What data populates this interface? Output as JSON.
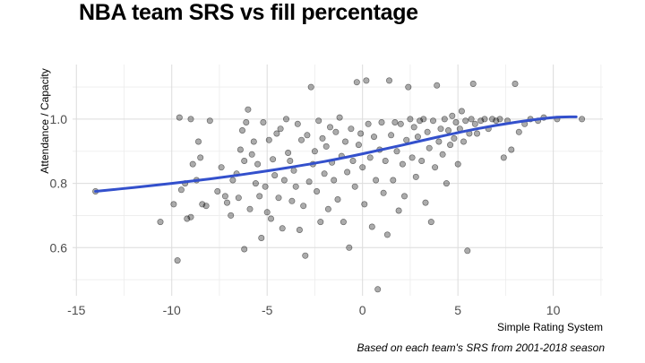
{
  "chart_data": {
    "type": "scatter",
    "title": "NBA team SRS vs fill percentage",
    "xlabel": "Simple Rating System",
    "ylabel": "Attendance / Capacity",
    "caption": "Based on each team's SRS from 2001-2018 season",
    "xlim": [
      -15.2,
      12.6
    ],
    "ylim": [
      0.45,
      1.17
    ],
    "x_ticks": [
      -15,
      -10,
      -5,
      0,
      5,
      10
    ],
    "x_tick_labels": [
      "-15",
      "-10",
      "-5",
      "0",
      "5",
      "10"
    ],
    "y_ticks": [
      0.6,
      0.8,
      1.0
    ],
    "y_tick_labels": [
      "0.6",
      "0.8",
      "1.0"
    ],
    "grid": true,
    "point_color": "#000000",
    "trend_color": "#3350cc",
    "trend": {
      "method": "smooth",
      "x": [
        -14.0,
        -12.0,
        -10.0,
        -8.0,
        -6.0,
        -4.0,
        -2.0,
        0.0,
        2.0,
        4.0,
        6.0,
        8.0,
        10.0,
        11.2
      ],
      "y": [
        0.775,
        0.787,
        0.8,
        0.814,
        0.83,
        0.848,
        0.868,
        0.892,
        0.918,
        0.945,
        0.97,
        0.99,
        1.005,
        1.007
      ]
    },
    "points": [
      [
        -14.0,
        0.775
      ],
      [
        -10.6,
        0.68
      ],
      [
        -9.9,
        0.735
      ],
      [
        -9.7,
        0.56
      ],
      [
        -9.6,
        1.005
      ],
      [
        -9.5,
        0.78
      ],
      [
        -9.3,
        0.8
      ],
      [
        -9.2,
        0.69
      ],
      [
        -9.0,
        0.695
      ],
      [
        -9.0,
        1.0
      ],
      [
        -8.9,
        0.86
      ],
      [
        -8.7,
        0.81
      ],
      [
        -8.6,
        0.93
      ],
      [
        -8.5,
        0.88
      ],
      [
        -8.4,
        0.735
      ],
      [
        -8.2,
        0.73
      ],
      [
        -8.0,
        0.995
      ],
      [
        -7.6,
        0.775
      ],
      [
        -7.4,
        0.85
      ],
      [
        -7.2,
        0.76
      ],
      [
        -7.1,
        0.74
      ],
      [
        -6.9,
        0.7
      ],
      [
        -6.8,
        0.81
      ],
      [
        -6.6,
        0.83
      ],
      [
        -6.5,
        0.755
      ],
      [
        -6.4,
        0.905
      ],
      [
        -6.3,
        0.965
      ],
      [
        -6.2,
        0.87
      ],
      [
        -6.2,
        0.595
      ],
      [
        -6.1,
        0.99
      ],
      [
        -6.0,
        1.03
      ],
      [
        -5.9,
        0.72
      ],
      [
        -5.8,
        0.89
      ],
      [
        -5.7,
        0.93
      ],
      [
        -5.6,
        0.8
      ],
      [
        -5.5,
        0.86
      ],
      [
        -5.4,
        0.76
      ],
      [
        -5.3,
        0.63
      ],
      [
        -5.2,
        0.99
      ],
      [
        -5.1,
        0.79
      ],
      [
        -5.0,
        0.71
      ],
      [
        -4.9,
        0.935
      ],
      [
        -4.8,
        0.69
      ],
      [
        -4.7,
        0.875
      ],
      [
        -4.6,
        0.825
      ],
      [
        -4.5,
        0.955
      ],
      [
        -4.4,
        0.755
      ],
      [
        -4.3,
        0.97
      ],
      [
        -4.2,
        0.66
      ],
      [
        -4.1,
        0.81
      ],
      [
        -4.0,
        1.0
      ],
      [
        -3.9,
        0.895
      ],
      [
        -3.8,
        0.87
      ],
      [
        -3.7,
        0.745
      ],
      [
        -3.6,
        0.84
      ],
      [
        -3.5,
        0.79
      ],
      [
        -3.4,
        0.985
      ],
      [
        -3.3,
        0.655
      ],
      [
        -3.2,
        0.935
      ],
      [
        -3.1,
        0.73
      ],
      [
        -3.0,
        0.575
      ],
      [
        -2.9,
        0.95
      ],
      [
        -2.8,
        0.805
      ],
      [
        -2.7,
        1.1
      ],
      [
        -2.6,
        0.86
      ],
      [
        -2.5,
        0.9
      ],
      [
        -2.4,
        0.775
      ],
      [
        -2.3,
        0.995
      ],
      [
        -2.2,
        0.68
      ],
      [
        -2.1,
        0.94
      ],
      [
        -2.0,
        0.83
      ],
      [
        -1.9,
        0.915
      ],
      [
        -1.8,
        0.72
      ],
      [
        -1.7,
        0.975
      ],
      [
        -1.6,
        0.865
      ],
      [
        -1.5,
        0.81
      ],
      [
        -1.4,
        0.96
      ],
      [
        -1.3,
        0.75
      ],
      [
        -1.2,
        1.005
      ],
      [
        -1.1,
        0.885
      ],
      [
        -1.0,
        0.68
      ],
      [
        -0.9,
        0.93
      ],
      [
        -0.8,
        0.835
      ],
      [
        -0.7,
        0.6
      ],
      [
        -0.6,
        0.97
      ],
      [
        -0.5,
        0.87
      ],
      [
        -0.4,
        0.79
      ],
      [
        -0.3,
        1.115
      ],
      [
        -0.2,
        0.92
      ],
      [
        -0.1,
        0.955
      ],
      [
        0.0,
        0.85
      ],
      [
        0.1,
        0.735
      ],
      [
        0.2,
        1.12
      ],
      [
        0.3,
        0.985
      ],
      [
        0.4,
        0.88
      ],
      [
        0.5,
        0.665
      ],
      [
        0.6,
        0.945
      ],
      [
        0.7,
        0.81
      ],
      [
        0.8,
        0.47
      ],
      [
        0.9,
        0.905
      ],
      [
        1.0,
        0.99
      ],
      [
        1.1,
        0.77
      ],
      [
        1.2,
        0.87
      ],
      [
        1.3,
        0.64
      ],
      [
        1.4,
        1.12
      ],
      [
        1.5,
        0.95
      ],
      [
        1.6,
        0.81
      ],
      [
        1.7,
        0.99
      ],
      [
        1.8,
        0.9
      ],
      [
        1.9,
        0.715
      ],
      [
        2.0,
        0.985
      ],
      [
        2.1,
        0.86
      ],
      [
        2.2,
        0.76
      ],
      [
        2.3,
        0.935
      ],
      [
        2.4,
        1.1
      ],
      [
        2.5,
        1.0
      ],
      [
        2.6,
        0.88
      ],
      [
        2.7,
        0.975
      ],
      [
        2.8,
        0.82
      ],
      [
        2.9,
        0.945
      ],
      [
        3.0,
        0.995
      ],
      [
        3.1,
        0.87
      ],
      [
        3.2,
        1.0
      ],
      [
        3.3,
        0.74
      ],
      [
        3.4,
        0.96
      ],
      [
        3.5,
        0.91
      ],
      [
        3.6,
        0.68
      ],
      [
        3.7,
        0.995
      ],
      [
        3.8,
        0.85
      ],
      [
        3.9,
        1.105
      ],
      [
        4.0,
        0.93
      ],
      [
        4.1,
        0.97
      ],
      [
        4.2,
        0.89
      ],
      [
        4.3,
        1.0
      ],
      [
        4.4,
        0.8
      ],
      [
        4.5,
        0.965
      ],
      [
        4.6,
        0.92
      ],
      [
        4.7,
        1.01
      ],
      [
        4.8,
        0.94
      ],
      [
        4.9,
        0.99
      ],
      [
        5.0,
        0.86
      ],
      [
        5.1,
        0.97
      ],
      [
        5.2,
        1.025
      ],
      [
        5.3,
        0.93
      ],
      [
        5.4,
        0.995
      ],
      [
        5.5,
        0.59
      ],
      [
        5.6,
        0.955
      ],
      [
        5.7,
        1.0
      ],
      [
        5.8,
        1.11
      ],
      [
        5.9,
        0.985
      ],
      [
        6.0,
        0.955
      ],
      [
        6.2,
        0.995
      ],
      [
        6.4,
        1.0
      ],
      [
        6.6,
        0.97
      ],
      [
        6.8,
        1.0
      ],
      [
        7.0,
        0.995
      ],
      [
        7.2,
        1.0
      ],
      [
        7.4,
        0.88
      ],
      [
        7.6,
        0.995
      ],
      [
        7.8,
        0.905
      ],
      [
        8.0,
        1.11
      ],
      [
        8.2,
        0.96
      ],
      [
        8.5,
        0.985
      ],
      [
        8.8,
        1.0
      ],
      [
        9.2,
        0.995
      ],
      [
        9.5,
        1.005
      ],
      [
        10.2,
        1.0
      ],
      [
        11.5,
        1.0
      ]
    ]
  }
}
